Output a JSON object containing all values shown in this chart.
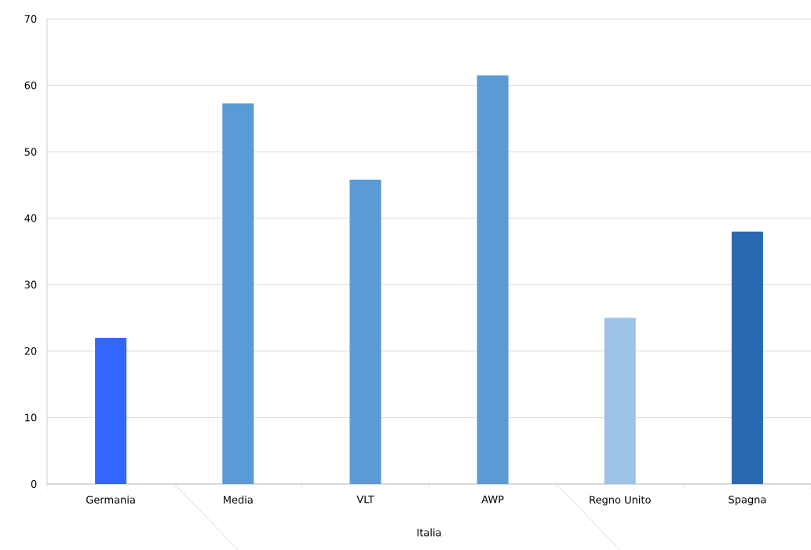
{
  "chart_data": {
    "type": "bar",
    "categories": [
      "Germania",
      "Media",
      "VLT",
      "AWP",
      "Regno Unito",
      "Spagna"
    ],
    "values": [
      22,
      57.3,
      45.8,
      61.5,
      25,
      38
    ],
    "colors": [
      "#3366ff",
      "#5b9bd5",
      "#5b9bd5",
      "#5b9bd5",
      "#9dc3e6",
      "#2a6ab4"
    ],
    "ylim": [
      0,
      70
    ],
    "yticks": [
      0,
      10,
      20,
      30,
      40,
      50,
      60,
      70
    ],
    "grid": "y",
    "annotations": [
      "Italia"
    ]
  }
}
